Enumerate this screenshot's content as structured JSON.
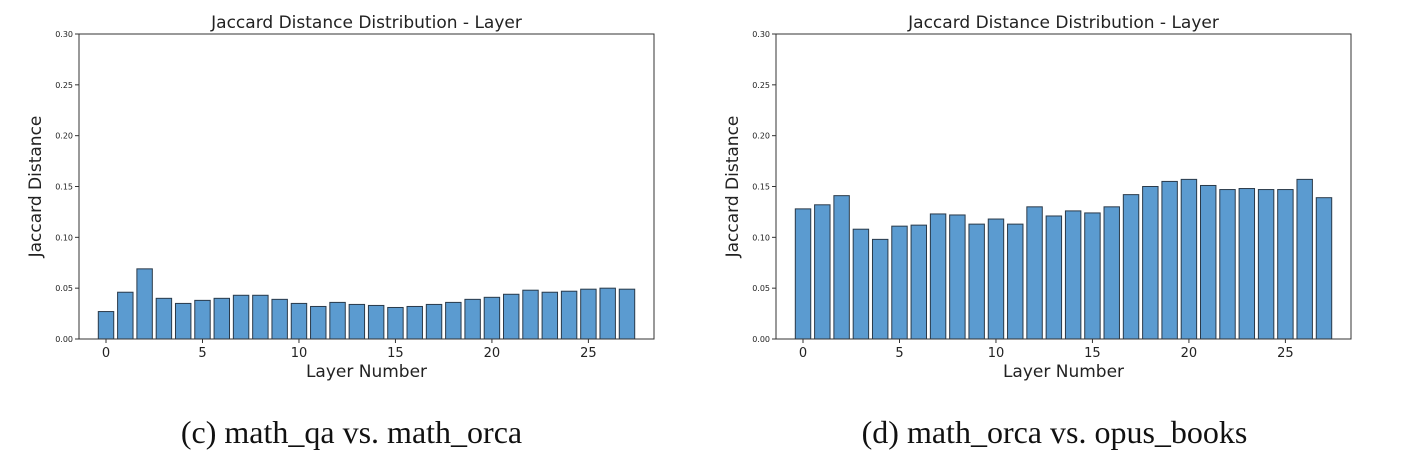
{
  "panels": [
    {
      "caption": "(c) math_qa vs. math_orca",
      "chart_data": {
        "type": "bar",
        "title": "Jaccard Distance Distribution - Layer",
        "xlabel": "Layer Number",
        "ylabel": "Jaccard Distance",
        "x": [
          0,
          1,
          2,
          3,
          4,
          5,
          6,
          7,
          8,
          9,
          10,
          11,
          12,
          13,
          14,
          15,
          16,
          17,
          18,
          19,
          20,
          21,
          22,
          23,
          24,
          25,
          26,
          27
        ],
        "values": [
          0.027,
          0.046,
          0.069,
          0.04,
          0.035,
          0.038,
          0.04,
          0.043,
          0.043,
          0.039,
          0.035,
          0.032,
          0.036,
          0.034,
          0.033,
          0.031,
          0.032,
          0.034,
          0.036,
          0.039,
          0.041,
          0.044,
          0.048,
          0.046,
          0.047,
          0.049,
          0.05,
          0.049
        ],
        "ylim": [
          0,
          0.3
        ],
        "yticks": [
          "0.00",
          "0.05",
          "0.10",
          "0.15",
          "0.20",
          "0.25",
          "0.30"
        ],
        "xticks": [
          "0",
          "5",
          "10",
          "15",
          "20",
          "25"
        ],
        "grid": false,
        "bar_color": "#5b9bd0"
      }
    },
    {
      "caption": "(d) math_orca vs. opus_books",
      "chart_data": {
        "type": "bar",
        "title": "Jaccard Distance Distribution - Layer",
        "xlabel": "Layer Number",
        "ylabel": "Jaccard Distance",
        "x": [
          0,
          1,
          2,
          3,
          4,
          5,
          6,
          7,
          8,
          9,
          10,
          11,
          12,
          13,
          14,
          15,
          16,
          17,
          18,
          19,
          20,
          21,
          22,
          23,
          24,
          25,
          26,
          27
        ],
        "values": [
          0.128,
          0.132,
          0.141,
          0.108,
          0.098,
          0.111,
          0.112,
          0.123,
          0.122,
          0.113,
          0.118,
          0.113,
          0.13,
          0.121,
          0.126,
          0.124,
          0.13,
          0.142,
          0.15,
          0.155,
          0.157,
          0.151,
          0.147,
          0.148,
          0.147,
          0.147,
          0.157,
          0.139
        ],
        "ylim": [
          0,
          0.3
        ],
        "yticks": [
          "0.00",
          "0.05",
          "0.10",
          "0.15",
          "0.20",
          "0.25",
          "0.30"
        ],
        "xticks": [
          "0",
          "5",
          "10",
          "15",
          "20",
          "25"
        ],
        "grid": false,
        "bar_color": "#5b9bd0"
      }
    }
  ]
}
